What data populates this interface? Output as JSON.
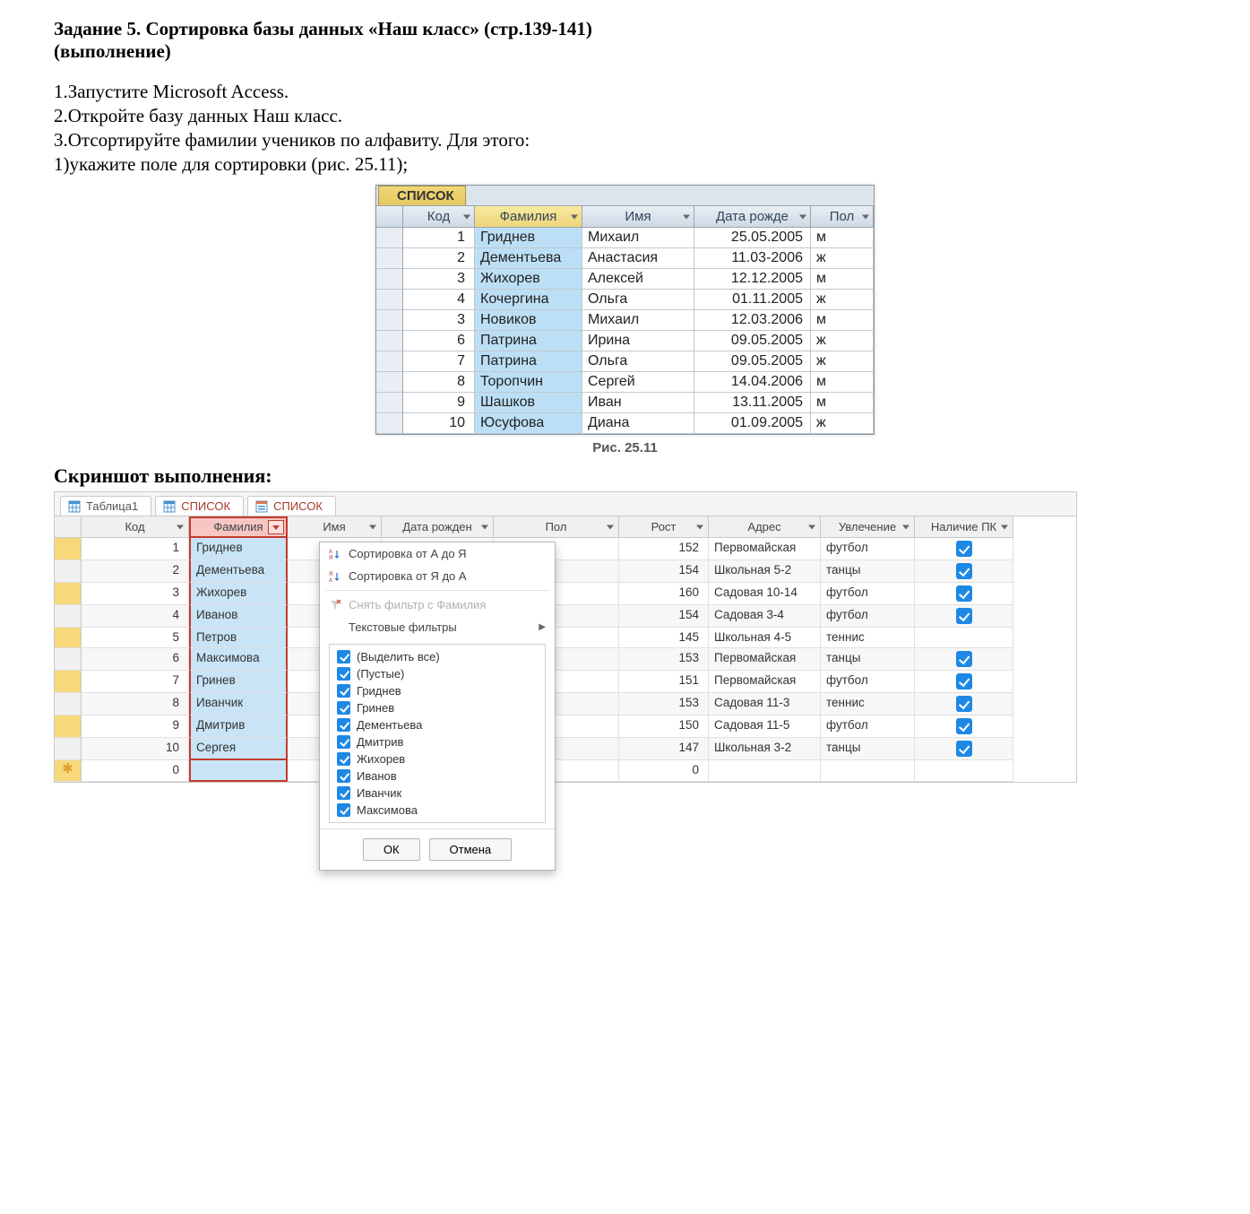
{
  "task_title_1": "Задание 5. Сортировка базы данных «Наш класс» (стр.139-141)",
  "task_title_2": "(выполнение)",
  "steps": {
    "s1": "1.Запустите Microsoft Access.",
    "s2": "2.Откройте базу данных Наш класс.",
    "s3": "3.Отсортируйте фамилии учеников по алфавиту. Для этого:",
    "s4": "1)укажите поле для сортировки (рис. 25.11);"
  },
  "fig": {
    "tab_label": "СПИСОК",
    "headers": [
      "",
      "Код",
      "Фамилия",
      "Имя",
      "Дата рожде",
      "Пол"
    ],
    "rows": [
      {
        "k": "1",
        "f": "Гриднев",
        "i": "Михаил",
        "d": "25.05.2005",
        "p": "м"
      },
      {
        "k": "2",
        "f": "Дементьева",
        "i": "Анастасия",
        "d": "11.03-2006",
        "p": "ж"
      },
      {
        "k": "3",
        "f": "Жихорев",
        "i": "Алексей",
        "d": "12.12.2005",
        "p": "м"
      },
      {
        "k": "4",
        "f": "Кочергина",
        "i": "Ольга",
        "d": "01.11.2005",
        "p": "ж"
      },
      {
        "k": "3",
        "f": "Новиков",
        "i": "Михаил",
        "d": "12.03.2006",
        "p": "м"
      },
      {
        "k": "6",
        "f": "Патрина",
        "i": "Ирина",
        "d": "09.05.2005",
        "p": "ж"
      },
      {
        "k": "7",
        "f": "Патрина",
        "i": "Ольга",
        "d": "09.05.2005",
        "p": "ж"
      },
      {
        "k": "8",
        "f": "Торопчин",
        "i": "Сергей",
        "d": "14.04.2006",
        "p": "м"
      },
      {
        "k": "9",
        "f": "Шашков",
        "i": "Иван",
        "d": "13.11.2005",
        "p": "м"
      },
      {
        "k": "10",
        "f": "Юсуфова",
        "i": "Диана",
        "d": "01.09.2005",
        "p": "ж"
      }
    ],
    "caption": "Рис. 25.11"
  },
  "screenshot_label": "Скриншот выполнения:",
  "access": {
    "tabs": [
      {
        "label": "Таблица1",
        "active": false,
        "kind": "table"
      },
      {
        "label": "СПИСОК",
        "active": true,
        "kind": "table"
      },
      {
        "label": "СПИСОК",
        "active": true,
        "kind": "form"
      }
    ],
    "columns": [
      "",
      "Код",
      "Фамилия",
      "Имя",
      "Дата рожден",
      "Пол",
      "Рост",
      "Адрес",
      "Увлечение",
      "Наличие ПК"
    ],
    "selected_col_index": 2,
    "rows": [
      {
        "k": "1",
        "f": "Гриднев",
        "rost": "152",
        "adr": "Первомайская",
        "uvl": "футбол",
        "pc": true,
        "yellow": true
      },
      {
        "k": "2",
        "f": "Дементьева",
        "rost": "154",
        "adr": "Школьная 5-2",
        "uvl": "танцы",
        "pc": true,
        "yellow": false
      },
      {
        "k": "3",
        "f": "Жихорев",
        "rost": "160",
        "adr": "Садовая 10-14",
        "uvl": "футбол",
        "pc": true,
        "yellow": true
      },
      {
        "k": "4",
        "f": "Иванов",
        "rost": "154",
        "adr": "Садовая 3-4",
        "uvl": "футбол",
        "pc": true,
        "yellow": false
      },
      {
        "k": "5",
        "f": "Петров",
        "rost": "145",
        "adr": "Школьная 4-5",
        "uvl": "теннис",
        "pc": false,
        "yellow": true
      },
      {
        "k": "6",
        "f": "Максимова",
        "rost": "153",
        "adr": "Первомайская",
        "uvl": "танцы",
        "pc": true,
        "yellow": false
      },
      {
        "k": "7",
        "f": "Гринев",
        "rost": "151",
        "adr": "Первомайская",
        "uvl": "футбол",
        "pc": true,
        "yellow": true
      },
      {
        "k": "8",
        "f": "Иванчик",
        "rost": "153",
        "adr": "Садовая 11-3",
        "uvl": "теннис",
        "pc": true,
        "yellow": false
      },
      {
        "k": "9",
        "f": "Дмитрив",
        "rost": "150",
        "adr": "Садовая 11-5",
        "uvl": "футбол",
        "pc": true,
        "yellow": true
      },
      {
        "k": "10",
        "f": "Сергея",
        "rost": "147",
        "adr": "Школьная 3-2",
        "uvl": "танцы",
        "pc": true,
        "yellow": false
      }
    ],
    "new_row": {
      "k": "0",
      "rost": "0"
    }
  },
  "dropdown": {
    "sort_asc": "Сортировка от А до Я",
    "sort_desc": "Сортировка от Я до А",
    "clear_filter": "Снять фильтр с Фамилия",
    "text_filters": "Текстовые фильтры",
    "select_all": "(Выделить все)",
    "empties": "(Пустые)",
    "items": [
      "Гриднев",
      "Гринев",
      "Дементьева",
      "Дмитрив",
      "Жихорев",
      "Иванов",
      "Иванчик",
      "Максимова"
    ],
    "ok": "ОК",
    "cancel": "Отмена"
  },
  "colors": {
    "accent_blue": "#1e88e5",
    "sel_pink": "#f5c6c2",
    "sel_red_border": "#c43a2e",
    "sel_col_blue": "#c8e4f5",
    "row_yellow": "#f7d87a"
  }
}
